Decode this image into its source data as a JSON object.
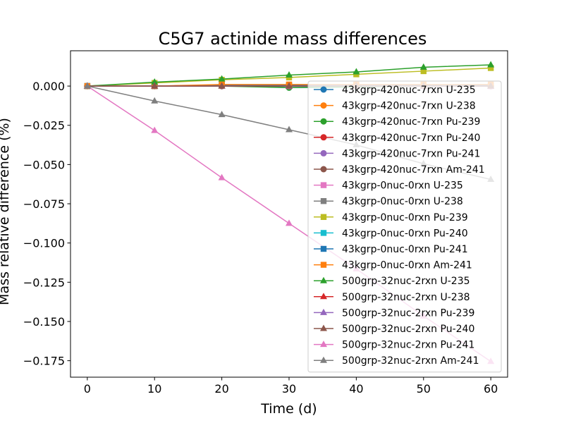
{
  "chart_data": {
    "type": "line",
    "title": "C5G7 actinide mass differences",
    "xlabel": "Time (d)",
    "ylabel": "Mass relative difference (%)",
    "xlim": [
      -2.5,
      62.5
    ],
    "ylim": [
      -0.1855,
      0.0225
    ],
    "xticks": [
      0,
      10,
      20,
      30,
      40,
      50,
      60
    ],
    "xtick_labels": [
      "0",
      "10",
      "20",
      "30",
      "40",
      "50",
      "60"
    ],
    "yticks": [
      0.0,
      -0.025,
      -0.05,
      -0.075,
      -0.1,
      -0.125,
      -0.15,
      -0.175
    ],
    "ytick_labels": [
      "0.000",
      "−0.025",
      "−0.050",
      "−0.075",
      "−0.100",
      "−0.125",
      "−0.150",
      "−0.175"
    ],
    "grid": false,
    "legend_position": "right",
    "x": [
      0,
      10,
      20,
      30,
      40,
      50,
      60
    ],
    "series": [
      {
        "name": "43kgrp-420nuc-7rxn U-235",
        "color": "#1f77b4",
        "marker": "circle",
        "values": [
          0,
          0.0,
          0.0005,
          -0.001,
          -0.0005,
          0.0,
          0.0
        ]
      },
      {
        "name": "43kgrp-420nuc-7rxn U-238",
        "color": "#ff7f0e",
        "marker": "circle",
        "values": [
          0,
          0.0,
          0.0005,
          0.0005,
          0.0005,
          0.0005,
          0.0005
        ]
      },
      {
        "name": "43kgrp-420nuc-7rxn Pu-239",
        "color": "#2ca02c",
        "marker": "circle",
        "values": [
          0,
          0.0,
          0.0,
          -0.001,
          -0.0005,
          0.0,
          0.0
        ]
      },
      {
        "name": "43kgrp-420nuc-7rxn Pu-240",
        "color": "#d62728",
        "marker": "circle",
        "values": [
          0,
          0.0,
          0.0,
          0.0,
          0.0,
          0.0,
          0.0
        ]
      },
      {
        "name": "43kgrp-420nuc-7rxn Pu-241",
        "color": "#9467bd",
        "marker": "circle",
        "values": [
          0,
          0.0,
          0.0,
          0.0,
          0.0,
          0.0,
          0.0
        ]
      },
      {
        "name": "43kgrp-420nuc-7rxn Am-241",
        "color": "#8c564b",
        "marker": "circle",
        "values": [
          0,
          0.0,
          0.0,
          0.0,
          0.0,
          0.0,
          0.0
        ]
      },
      {
        "name": "43kgrp-0nuc-0rxn U-235",
        "color": "#e377c2",
        "marker": "square",
        "values": [
          0,
          0.0,
          0.0005,
          0.0,
          0.0,
          0.0,
          0.0
        ]
      },
      {
        "name": "43kgrp-0nuc-0rxn U-238",
        "color": "#7f7f7f",
        "marker": "square",
        "values": [
          0,
          0.0,
          0.0005,
          0.0005,
          0.0005,
          0.0005,
          0.0005
        ]
      },
      {
        "name": "43kgrp-0nuc-0rxn Pu-239",
        "color": "#bcbd22",
        "marker": "square",
        "values": [
          0,
          0.002,
          0.004,
          0.0055,
          0.0075,
          0.0095,
          0.0115
        ]
      },
      {
        "name": "43kgrp-0nuc-0rxn Pu-240",
        "color": "#17becf",
        "marker": "square",
        "values": [
          0,
          0.0,
          0.0005,
          0.0005,
          0.0005,
          0.0005,
          0.0005
        ]
      },
      {
        "name": "43kgrp-0nuc-0rxn Pu-241",
        "color": "#1f77b4",
        "marker": "square",
        "values": [
          0,
          0.0,
          0.0005,
          0.0005,
          0.0005,
          0.0005,
          0.0005
        ]
      },
      {
        "name": "43kgrp-0nuc-0rxn Am-241",
        "color": "#ff7f0e",
        "marker": "square",
        "values": [
          0,
          0.0,
          0.001,
          0.001,
          0.001,
          0.001,
          0.001
        ]
      },
      {
        "name": "500grp-32nuc-2rxn U-235",
        "color": "#2ca02c",
        "marker": "triangle",
        "values": [
          0,
          0.0025,
          0.0045,
          0.007,
          0.009,
          0.012,
          0.0135
        ]
      },
      {
        "name": "500grp-32nuc-2rxn U-238",
        "color": "#d62728",
        "marker": "triangle",
        "values": [
          0,
          0.0,
          0.0,
          0.0,
          0.0,
          0.0,
          0.0
        ]
      },
      {
        "name": "500grp-32nuc-2rxn Pu-239",
        "color": "#9467bd",
        "marker": "triangle",
        "values": [
          0,
          0.0,
          0.0,
          0.0,
          0.0,
          0.0,
          0.0
        ]
      },
      {
        "name": "500grp-32nuc-2rxn Pu-240",
        "color": "#8c564b",
        "marker": "triangle",
        "values": [
          0,
          0.0,
          0.0,
          0.0,
          0.0,
          0.0,
          0.0
        ]
      },
      {
        "name": "500grp-32nuc-2rxn Pu-241",
        "color": "#e377c2",
        "marker": "triangle",
        "values": [
          0,
          -0.0283,
          -0.0584,
          -0.0875,
          -0.1165,
          -0.1465,
          -0.1755
        ]
      },
      {
        "name": "500grp-32nuc-2rxn Am-241",
        "color": "#7f7f7f",
        "marker": "triangle",
        "values": [
          0,
          -0.0095,
          -0.0182,
          -0.0278,
          -0.0375,
          -0.0495,
          -0.0595
        ]
      }
    ]
  }
}
